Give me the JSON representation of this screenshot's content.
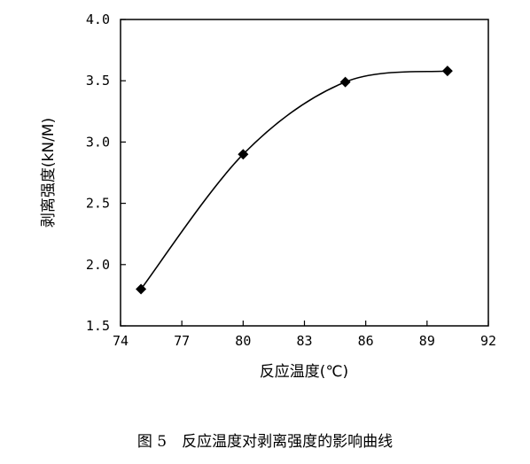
{
  "chart_data": {
    "type": "line",
    "title": "",
    "xlabel": "反应温度(℃)",
    "ylabel": "剥离强度(kN/M)",
    "xlim": [
      74,
      92
    ],
    "ylim": [
      1.5,
      4.0
    ],
    "x_ticks": [
      "74",
      "77",
      "80",
      "83",
      "86",
      "89",
      "92"
    ],
    "y_ticks": [
      "1.5",
      "2.0",
      "2.5",
      "3.0",
      "3.5",
      "4.0"
    ],
    "grid": false,
    "legend": "none",
    "marker": "diamond",
    "line_color": "#000000",
    "x": [
      75,
      80,
      85,
      90
    ],
    "series": [
      {
        "values": [
          1.8,
          2.9,
          3.49,
          3.58
        ]
      }
    ]
  },
  "caption": "图 5　反应温度对剥离强度的影响曲线"
}
